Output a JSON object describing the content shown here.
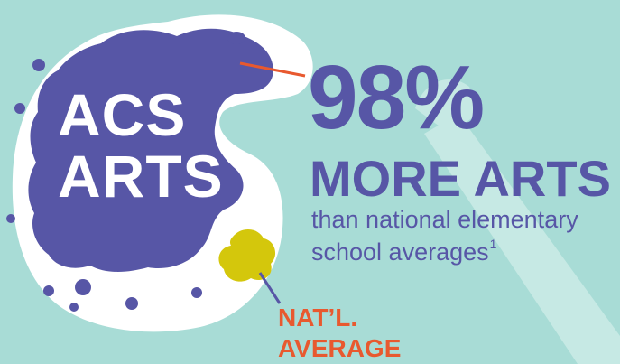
{
  "blob": {
    "line1": "ACS",
    "line2": "ARTS"
  },
  "headline": {
    "percent": "98%",
    "more": "MORE ARTS",
    "sub_line1": "than national elementary",
    "sub_line2": "school averages",
    "footnote_mark": "1"
  },
  "national": {
    "line1": "NAT’L.",
    "line2": "AVERAGE"
  },
  "colors": {
    "background": "#a8dcd6",
    "palette": "#ffffff",
    "purple": "#5756a6",
    "yellow": "#d4c70c",
    "orange": "#e8592f",
    "guitar": "#c6e9e4"
  }
}
